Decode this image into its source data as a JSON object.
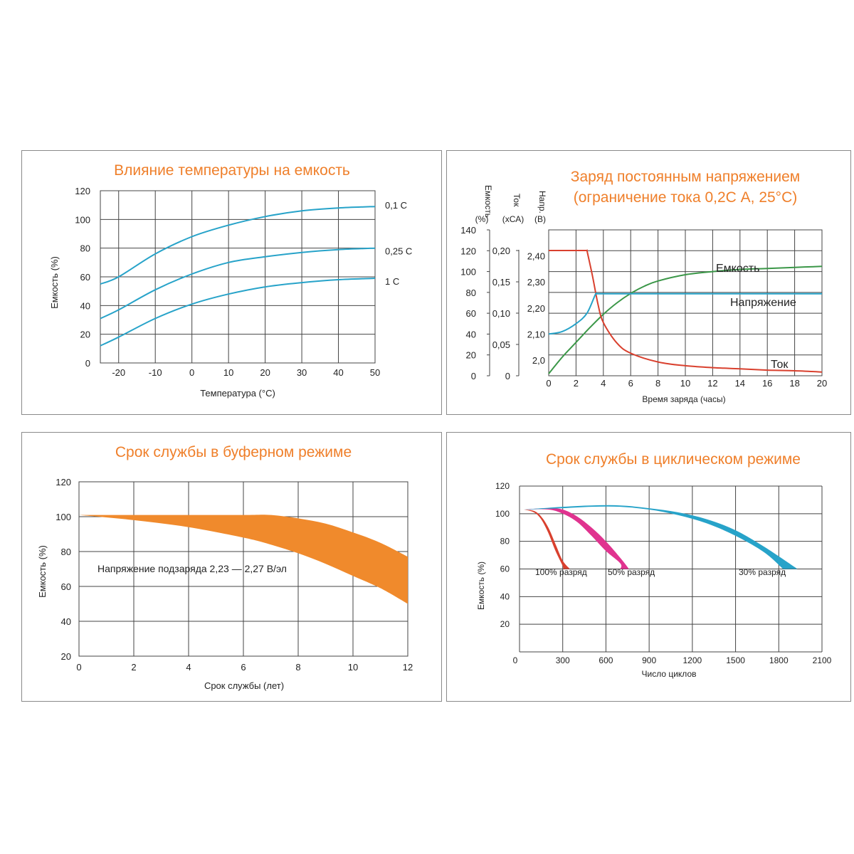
{
  "chart_data": [
    {
      "type": "line",
      "title": "Влияние температуры на емкость",
      "xlabel": "Температура (°С)",
      "ylabel": "Емкость (%)",
      "xlim": [
        -25,
        50
      ],
      "ylim": [
        0,
        120
      ],
      "xticks": [
        "-20",
        "-10",
        "0",
        "10",
        "20",
        "30",
        "40",
        "50"
      ],
      "yticks": [
        "0",
        "20",
        "40",
        "60",
        "80",
        "100",
        "120"
      ],
      "grid": true,
      "series": [
        {
          "name": "0,1 С",
          "color": "#27a3c9",
          "x": [
            -25,
            -20,
            -10,
            0,
            10,
            20,
            30,
            40,
            50
          ],
          "y": [
            55,
            60,
            76,
            88,
            96,
            102,
            106,
            108,
            109
          ]
        },
        {
          "name": "0,25 С",
          "color": "#27a3c9",
          "x": [
            -25,
            -20,
            -10,
            0,
            10,
            20,
            30,
            40,
            50
          ],
          "y": [
            31,
            37,
            51,
            62,
            70,
            74,
            77,
            79,
            80
          ]
        },
        {
          "name": "1 С",
          "color": "#27a3c9",
          "x": [
            -25,
            -20,
            -10,
            0,
            10,
            20,
            30,
            40,
            50
          ],
          "y": [
            12,
            18,
            31,
            41,
            48,
            53,
            56,
            58,
            59
          ]
        }
      ]
    },
    {
      "type": "line",
      "title": "Заряд постоянным напряжением",
      "subtitle": "(ограничение тока 0,2С А, 25°С)",
      "xlabel": "Время заряда (часы)",
      "xlim": [
        0,
        20
      ],
      "xticks": [
        "0",
        "2",
        "4",
        "6",
        "8",
        "10",
        "12",
        "14",
        "16",
        "18",
        "20"
      ],
      "grid": true,
      "axes": [
        {
          "title": "Емкость",
          "unit": "(%)",
          "ticks": [
            "0",
            "20",
            "40",
            "60",
            "80",
            "100",
            "120",
            "140"
          ],
          "lim": [
            0,
            140
          ]
        },
        {
          "title": "Ток",
          "unit": "(хСА)",
          "ticks": [
            "0",
            "0,05",
            "0,10",
            "0,15",
            "0,20"
          ],
          "lim": [
            0,
            0.233
          ]
        },
        {
          "title": "Напр.",
          "unit": "(В)",
          "ticks": [
            "2,0",
            "2,10",
            "2,20",
            "2,30",
            "2,40"
          ],
          "lim": [
            1.94,
            2.5
          ]
        }
      ],
      "series": [
        {
          "name": "Емкость",
          "axis": 0,
          "color": "#3b9748",
          "x": [
            0,
            1,
            2,
            3,
            4,
            5,
            6,
            7,
            8,
            10,
            12,
            14,
            16,
            18,
            20
          ],
          "y": [
            2,
            18,
            32,
            46,
            59,
            70,
            79,
            86,
            91,
            97,
            100,
            102,
            103,
            104,
            105
          ]
        },
        {
          "name": "Ток",
          "axis": 1,
          "color": "#d9402e",
          "x": [
            0,
            2.8,
            3.2,
            3.6,
            4,
            5,
            6,
            8,
            10,
            12,
            14,
            16,
            18,
            20
          ],
          "y": [
            0.2,
            0.2,
            0.16,
            0.115,
            0.085,
            0.052,
            0.036,
            0.022,
            0.016,
            0.013,
            0.011,
            0.009,
            0.008,
            0.006
          ]
        },
        {
          "name": "Напряжение",
          "axis": 2,
          "color": "#27a3c9",
          "x": [
            0,
            1,
            2,
            2.8,
            3.4,
            3.5,
            20
          ],
          "y": [
            2.1,
            2.11,
            2.14,
            2.18,
            2.25,
            2.255,
            2.255
          ]
        }
      ]
    },
    {
      "type": "area",
      "title": "Срок службы в буферном режиме",
      "xlabel": "Срок службы (лет)",
      "ylabel": "Емкость (%)",
      "xlim": [
        0,
        12
      ],
      "ylim": [
        20,
        120
      ],
      "xticks": [
        "0",
        "2",
        "4",
        "6",
        "8",
        "10",
        "12"
      ],
      "yticks": [
        "20",
        "40",
        "60",
        "80",
        "100",
        "120"
      ],
      "grid": true,
      "annotation": "Напряжение подзаряда 2,23 — 2,27 В/эл",
      "color": "#f08a2c",
      "band": {
        "x": [
          0,
          2,
          4,
          6,
          7,
          8,
          9,
          10,
          11,
          12
        ],
        "upper": [
          101,
          101,
          101,
          101,
          101,
          99,
          96,
          91,
          85,
          77
        ],
        "lower": [
          101,
          98,
          94,
          88,
          84,
          79,
          73,
          66,
          59,
          50
        ]
      }
    },
    {
      "type": "area",
      "title": "Срок службы в циклическом режиме",
      "xlabel": "Число циклов",
      "ylabel": "Емкость (%)",
      "xlim": [
        0,
        2100
      ],
      "ylim": [
        0,
        120
      ],
      "xticks": [
        "0",
        "300",
        "600",
        "900",
        "1200",
        "1500",
        "1800",
        "2100"
      ],
      "yticks": [
        "20",
        "40",
        "60",
        "80",
        "100",
        "120"
      ],
      "grid": true,
      "series": [
        {
          "name": "100% разряд",
          "color": "#d9402e",
          "x": [
            30,
            100,
            150,
            200,
            250,
            300,
            350
          ],
          "upper": [
            103,
            102,
            98,
            90,
            78,
            66,
            60
          ],
          "lower": [
            103,
            101,
            96,
            86,
            73,
            62,
            60
          ],
          "end_x": [
            300,
            350
          ]
        },
        {
          "name": "50% разряд",
          "color": "#e0338f",
          "x": [
            30,
            200,
            300,
            400,
            500,
            600,
            700,
            760
          ],
          "upper": [
            103,
            104,
            103,
            98,
            90,
            80,
            68,
            60
          ],
          "lower": [
            103,
            103,
            100,
            94,
            84,
            73,
            64,
            60
          ],
          "end_x": [
            700,
            760
          ]
        },
        {
          "name": "30% разряд",
          "color": "#27a3c9",
          "x": [
            30,
            300,
            500,
            700,
            900,
            1100,
            1300,
            1500,
            1700,
            1900
          ],
          "upper": [
            103,
            105,
            106,
            106,
            104,
            101,
            96,
            88,
            76,
            60
          ],
          "lower": [
            103,
            104,
            105,
            105,
            103,
            99,
            93,
            84,
            72,
            60
          ],
          "end_x": [
            1830,
            1930
          ]
        }
      ]
    }
  ]
}
